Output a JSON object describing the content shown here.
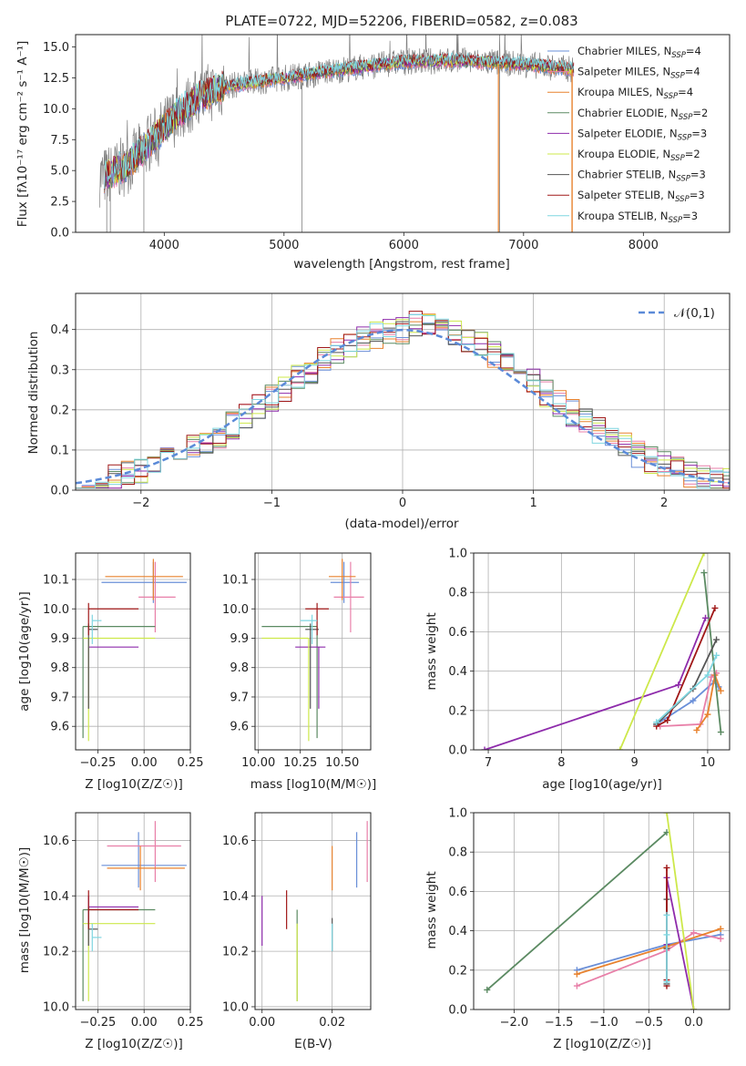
{
  "colors": {
    "Chabrier MILES": "#6a8fd8",
    "Salpeter MILES": "#e87fa8",
    "Kroupa MILES": "#e8822e",
    "Chabrier ELODIE": "#5b8a62",
    "Salpeter ELODIE": "#8e2bab",
    "Kroupa ELODIE": "#cde84a",
    "Chabrier STELIB": "#555555",
    "Salpeter STELIB": "#a01818",
    "Kroupa STELIB": "#7fd6e0",
    "data": "#808080",
    "normal": "#5b8ad8"
  },
  "chart_data": [
    {
      "type": "line",
      "title": "PLATE=0722, MJD=52206, FIBERID=0582, z=0.083",
      "xlabel": "wavelength [Angstrom, rest frame]",
      "ylabel": "Flux [fλ10⁻¹⁷ erg cm⁻² s⁻¹ A⁻¹]",
      "xlim": [
        3260,
        8720
      ],
      "ylim": [
        0,
        16
      ],
      "xticks": [
        4000,
        5000,
        6000,
        7000,
        8000
      ],
      "yticks": [
        0.0,
        2.5,
        5.0,
        7.5,
        10.0,
        12.5,
        15.0
      ],
      "legend_position": "right",
      "grid": false,
      "series": [
        {
          "name": "Chabrier MILES, N_SSP=4"
        },
        {
          "name": "Salpeter MILES, N_SSP=4"
        },
        {
          "name": "Kroupa MILES, N_SSP=4"
        },
        {
          "name": "Chabrier ELODIE, N_SSP=2"
        },
        {
          "name": "Salpeter ELODIE, N_SSP=3"
        },
        {
          "name": "Kroupa ELODIE, N_SSP=2"
        },
        {
          "name": "Chabrier STELIB, N_SSP=3"
        },
        {
          "name": "Salpeter STELIB, N_SSP=3"
        },
        {
          "name": "Kroupa STELIB, N_SSP=3"
        }
      ],
      "continuum_approx": {
        "x": [
          3500,
          3700,
          3900,
          4100,
          4300,
          4500,
          5000,
          5500,
          6000,
          6500,
          7000,
          7400
        ],
        "y": [
          4.5,
          5.5,
          7.5,
          9.5,
          11.0,
          11.8,
          12.5,
          13.2,
          13.8,
          13.9,
          13.6,
          13.2
        ]
      }
    },
    {
      "type": "histogram",
      "xlabel": "(data-model)/error",
      "ylabel": "Normed distribution",
      "xlim": [
        -2.5,
        2.5
      ],
      "ylim": [
        0,
        0.49
      ],
      "xticks": [
        -2,
        -1,
        0,
        1,
        2
      ],
      "yticks": [
        0.0,
        0.1,
        0.2,
        0.3,
        0.4
      ],
      "grid": true,
      "legend_position": "top-right",
      "reference": {
        "name": "𝒩(0,1)",
        "mean": 0,
        "sigma": 1
      }
    },
    {
      "type": "errorbar",
      "xlabel": "Z [log10(Z/Z☉)]",
      "ylabel": "age  [log10(age/yr)]",
      "xlim": [
        -0.37,
        0.25
      ],
      "ylim": [
        9.52,
        10.19
      ],
      "xticks": [
        -0.25,
        0.0,
        0.25
      ],
      "yticks": [
        9.6,
        9.7,
        9.8,
        9.9,
        10.0,
        10.1
      ],
      "grid": true,
      "points": [
        {
          "s": "Chabrier MILES",
          "x": 0.05,
          "y": 10.09,
          "ex": [
            -0.23,
            0.23
          ],
          "ey": [
            10.02,
            10.16
          ]
        },
        {
          "s": "Salpeter MILES",
          "x": 0.06,
          "y": 10.04,
          "ex": [
            -0.03,
            0.17
          ],
          "ey": [
            9.92,
            10.16
          ]
        },
        {
          "s": "Kroupa MILES",
          "x": 0.05,
          "y": 10.11,
          "ex": [
            -0.21,
            0.21
          ],
          "ey": [
            10.03,
            10.17
          ]
        },
        {
          "s": "Chabrier ELODIE",
          "x": -0.33,
          "y": 9.94,
          "ex": [
            -0.33,
            0.06
          ],
          "ey": [
            9.56,
            9.94
          ]
        },
        {
          "s": "Salpeter ELODIE",
          "x": -0.3,
          "y": 9.87,
          "ex": [
            -0.3,
            -0.03
          ],
          "ey": [
            9.66,
            9.87
          ]
        },
        {
          "s": "Kroupa ELODIE",
          "x": -0.3,
          "y": 9.9,
          "ex": [
            -0.33,
            0.06
          ],
          "ey": [
            9.55,
            9.9
          ]
        },
        {
          "s": "Chabrier STELIB",
          "x": -0.3,
          "y": 9.93,
          "ex": [
            -0.3,
            -0.25
          ],
          "ey": [
            9.66,
            9.95
          ]
        },
        {
          "s": "Salpeter STELIB",
          "x": -0.3,
          "y": 10.0,
          "ex": [
            -0.3,
            -0.03
          ],
          "ey": [
            9.91,
            10.02
          ]
        },
        {
          "s": "Kroupa STELIB",
          "x": -0.28,
          "y": 9.96,
          "ex": [
            -0.28,
            -0.23
          ],
          "ey": [
            9.88,
            9.98
          ]
        }
      ]
    },
    {
      "type": "errorbar",
      "xlabel": "mass [log10(M/M☉)]",
      "ylabel": "",
      "xlim": [
        9.98,
        10.67
      ],
      "ylim": [
        9.52,
        10.19
      ],
      "xticks": [
        10.0,
        10.25,
        10.5
      ],
      "yticks": [
        9.6,
        9.7,
        9.8,
        9.9,
        10.0,
        10.1
      ],
      "grid": true,
      "points": [
        {
          "s": "Chabrier MILES",
          "x": 10.51,
          "y": 10.09,
          "ex": [
            10.43,
            10.6
          ],
          "ey": [
            10.02,
            10.16
          ]
        },
        {
          "s": "Salpeter MILES",
          "x": 10.55,
          "y": 10.04,
          "ex": [
            10.45,
            10.63
          ],
          "ey": [
            9.92,
            10.16
          ]
        },
        {
          "s": "Kroupa MILES",
          "x": 10.5,
          "y": 10.11,
          "ex": [
            10.42,
            10.58
          ],
          "ey": [
            10.03,
            10.17
          ]
        },
        {
          "s": "Chabrier ELODIE",
          "x": 10.35,
          "y": 9.94,
          "ex": [
            10.02,
            10.35
          ],
          "ey": [
            9.56,
            9.94
          ]
        },
        {
          "s": "Salpeter ELODIE",
          "x": 10.36,
          "y": 9.87,
          "ex": [
            10.22,
            10.4
          ],
          "ey": [
            9.66,
            9.87
          ]
        },
        {
          "s": "Kroupa ELODIE",
          "x": 10.3,
          "y": 9.9,
          "ex": [
            10.02,
            10.3
          ],
          "ey": [
            9.55,
            9.9
          ]
        },
        {
          "s": "Chabrier STELIB",
          "x": 10.31,
          "y": 9.93,
          "ex": [
            10.28,
            10.36
          ],
          "ey": [
            9.66,
            9.95
          ]
        },
        {
          "s": "Salpeter STELIB",
          "x": 10.35,
          "y": 10.0,
          "ex": [
            10.28,
            10.42
          ],
          "ey": [
            9.91,
            10.02
          ]
        },
        {
          "s": "Kroupa STELIB",
          "x": 10.32,
          "y": 9.96,
          "ex": [
            10.25,
            10.35
          ],
          "ey": [
            9.88,
            9.98
          ]
        }
      ]
    },
    {
      "type": "line",
      "xlabel": "age  [log10(age/yr)]",
      "ylabel": "mass weight",
      "xlim": [
        6.8,
        10.3
      ],
      "ylim": [
        0,
        1
      ],
      "xticks": [
        7,
        8,
        9,
        10
      ],
      "yticks": [
        0.0,
        0.2,
        0.4,
        0.6,
        0.8,
        1.0
      ],
      "grid": true,
      "series": [
        {
          "s": "Chabrier MILES",
          "x": [
            9.3,
            9.8,
            10.1,
            10.15
          ],
          "y": [
            0.13,
            0.25,
            0.35,
            0.32
          ]
        },
        {
          "s": "Salpeter MILES",
          "x": [
            9.35,
            9.9,
            10.05,
            10.12
          ],
          "y": [
            0.12,
            0.13,
            0.37,
            0.39
          ]
        },
        {
          "s": "Kroupa MILES",
          "x": [
            9.85,
            10.0,
            10.1,
            10.18
          ],
          "y": [
            0.1,
            0.18,
            0.38,
            0.3
          ]
        },
        {
          "s": "Chabrier ELODIE",
          "x": [
            9.95,
            10.18
          ],
          "y": [
            0.9,
            0.09
          ]
        },
        {
          "s": "Salpeter ELODIE",
          "x": [
            6.95,
            9.6,
            9.97
          ],
          "y": [
            0.0,
            0.33,
            0.67
          ]
        },
        {
          "s": "Kroupa ELODIE",
          "x": [
            8.8,
            9.95
          ],
          "y": [
            0.0,
            1.0
          ]
        },
        {
          "s": "Chabrier STELIB",
          "x": [
            9.3,
            9.8,
            10.12
          ],
          "y": [
            0.13,
            0.31,
            0.56
          ]
        },
        {
          "s": "Salpeter STELIB",
          "x": [
            9.3,
            9.45,
            10.1
          ],
          "y": [
            0.12,
            0.15,
            0.72
          ]
        },
        {
          "s": "Kroupa STELIB",
          "x": [
            9.3,
            10.0,
            10.12
          ],
          "y": [
            0.14,
            0.38,
            0.48
          ]
        }
      ]
    },
    {
      "type": "errorbar",
      "xlabel": "Z [log10(Z/Z☉)]",
      "ylabel": "mass [log10(M/M☉)]",
      "xlim": [
        -0.37,
        0.25
      ],
      "ylim": [
        9.99,
        10.7
      ],
      "xticks": [
        -0.25,
        0.0,
        0.25
      ],
      "yticks": [
        10.0,
        10.2,
        10.4,
        10.6
      ],
      "grid": true,
      "points": [
        {
          "s": "Chabrier MILES",
          "x": -0.03,
          "y": 10.51,
          "ex": [
            -0.23,
            0.23
          ],
          "ey": [
            10.43,
            10.63
          ]
        },
        {
          "s": "Salpeter MILES",
          "x": 0.06,
          "y": 10.58,
          "ex": [
            -0.2,
            0.2
          ],
          "ey": [
            10.45,
            10.67
          ]
        },
        {
          "s": "Kroupa MILES",
          "x": -0.02,
          "y": 10.5,
          "ex": [
            -0.2,
            0.22
          ],
          "ey": [
            10.42,
            10.58
          ]
        },
        {
          "s": "Chabrier ELODIE",
          "x": -0.33,
          "y": 10.35,
          "ex": [
            -0.33,
            0.06
          ],
          "ey": [
            10.02,
            10.35
          ]
        },
        {
          "s": "Salpeter ELODIE",
          "x": -0.3,
          "y": 10.36,
          "ex": [
            -0.3,
            -0.03
          ],
          "ey": [
            10.22,
            10.4
          ]
        },
        {
          "s": "Kroupa ELODIE",
          "x": -0.3,
          "y": 10.3,
          "ex": [
            -0.33,
            0.06
          ],
          "ey": [
            10.02,
            10.3
          ]
        },
        {
          "s": "Chabrier STELIB",
          "x": -0.3,
          "y": 10.28,
          "ex": [
            -0.3,
            -0.25
          ],
          "ey": [
            10.22,
            10.36
          ]
        },
        {
          "s": "Salpeter STELIB",
          "x": -0.3,
          "y": 10.35,
          "ex": [
            -0.3,
            -0.03
          ],
          "ey": [
            10.28,
            10.42
          ]
        },
        {
          "s": "Kroupa STELIB",
          "x": -0.28,
          "y": 10.25,
          "ex": [
            -0.28,
            -0.23
          ],
          "ey": [
            10.2,
            10.3
          ]
        }
      ]
    },
    {
      "type": "errorbar",
      "xlabel": "E(B-V)",
      "ylabel": "",
      "xlim": [
        -0.002,
        0.031
      ],
      "ylim": [
        9.99,
        10.7
      ],
      "xticks": [
        0.0,
        0.02
      ],
      "yticks": [
        10.0,
        10.2,
        10.4,
        10.6
      ],
      "grid": true,
      "points": [
        {
          "s": "Chabrier MILES",
          "x": 0.027,
          "y": 10.55,
          "ey": [
            10.43,
            10.63
          ]
        },
        {
          "s": "Salpeter MILES",
          "x": 0.03,
          "y": 10.58,
          "ey": [
            10.45,
            10.67
          ]
        },
        {
          "s": "Kroupa MILES",
          "x": 0.02,
          "y": 10.52,
          "ey": [
            10.42,
            10.58
          ]
        },
        {
          "s": "Chabrier ELODIE",
          "x": 0.01,
          "y": 10.3,
          "ey": [
            10.02,
            10.35
          ]
        },
        {
          "s": "Salpeter ELODIE",
          "x": 0.0,
          "y": 10.3,
          "ey": [
            10.22,
            10.4
          ]
        },
        {
          "s": "Kroupa ELODIE",
          "x": 0.01,
          "y": 10.2,
          "ey": [
            10.02,
            10.3
          ]
        },
        {
          "s": "Chabrier STELIB",
          "x": 0.02,
          "y": 10.3,
          "ey": [
            10.2,
            10.32
          ]
        },
        {
          "s": "Salpeter STELIB",
          "x": 0.007,
          "y": 10.35,
          "ey": [
            10.28,
            10.42
          ]
        },
        {
          "s": "Kroupa STELIB",
          "x": 0.02,
          "y": 10.25,
          "ey": [
            10.2,
            10.3
          ]
        }
      ]
    },
    {
      "type": "line",
      "xlabel": "Z [log10(Z/Z☉)]",
      "ylabel": "mass weight",
      "xlim": [
        -2.45,
        0.4
      ],
      "ylim": [
        0,
        1
      ],
      "xticks": [
        -2.0,
        -1.5,
        -1.0,
        -0.5,
        0.0
      ],
      "yticks": [
        0.0,
        0.2,
        0.4,
        0.6,
        0.8,
        1.0
      ],
      "grid": true,
      "series": [
        {
          "s": "Chabrier MILES",
          "x": [
            -1.3,
            -0.3,
            0.3
          ],
          "y": [
            0.2,
            0.33,
            0.38
          ]
        },
        {
          "s": "Salpeter MILES",
          "x": [
            -1.3,
            -0.3,
            0.0,
            0.3
          ],
          "y": [
            0.12,
            0.3,
            0.39,
            0.36
          ]
        },
        {
          "s": "Kroupa MILES",
          "x": [
            -1.3,
            -0.3,
            0.3
          ],
          "y": [
            0.18,
            0.32,
            0.41
          ]
        },
        {
          "s": "Chabrier ELODIE",
          "x": [
            -2.3,
            -0.3
          ],
          "y": [
            0.1,
            0.9
          ]
        },
        {
          "s": "Salpeter ELODIE",
          "x": [
            -0.3,
            -0.3,
            0.0
          ],
          "y": [
            0.33,
            0.67,
            0.0
          ]
        },
        {
          "s": "Kroupa ELODIE",
          "x": [
            -0.3,
            0.0
          ],
          "y": [
            1.0,
            0.0
          ]
        },
        {
          "s": "Chabrier STELIB",
          "x": [
            -0.3,
            -0.3,
            -0.3
          ],
          "y": [
            0.13,
            0.31,
            0.56
          ]
        },
        {
          "s": "Salpeter STELIB",
          "x": [
            -0.3,
            -0.3,
            -0.3
          ],
          "y": [
            0.12,
            0.72,
            0.15
          ]
        },
        {
          "s": "Kroupa STELIB",
          "x": [
            -0.3,
            -0.3,
            -0.3
          ],
          "y": [
            0.14,
            0.48,
            0.38
          ]
        }
      ]
    }
  ]
}
